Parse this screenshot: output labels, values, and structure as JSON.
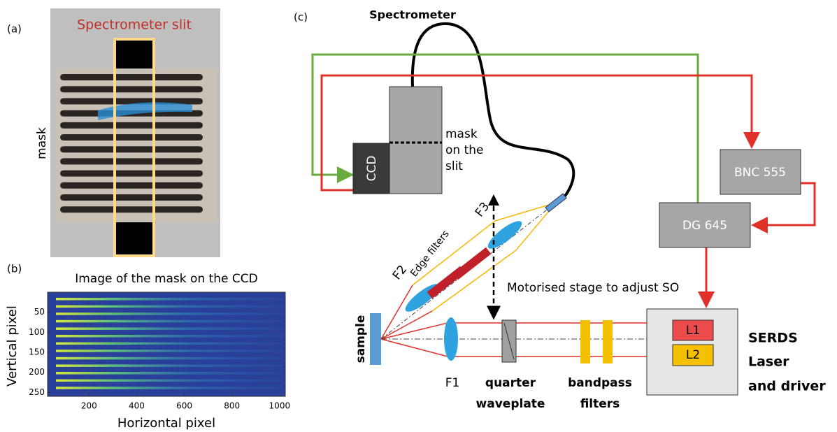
{
  "panel_a": {
    "label": "(a)",
    "title": "Spectrometer slit",
    "side_label": "mask"
  },
  "panel_b": {
    "label": "(b)",
    "title": "Image of the mask on the CCD",
    "x_label": "Horizontal pixel",
    "y_label": "Vertical pixel",
    "xlim": [
      26,
      1024
    ],
    "ylim": [
      0,
      260
    ],
    "xticks": [
      200,
      400,
      600,
      800,
      1000
    ],
    "yticks": [
      50,
      100,
      150,
      200,
      250
    ]
  },
  "panel_c": {
    "label": "(c)",
    "spectrometer": "Spectrometer",
    "ccd": "CCD",
    "mask_note": [
      "mask",
      "on the",
      "slit"
    ],
    "bnc": "BNC 555",
    "dg": "DG 645",
    "l1": "L1",
    "l2": "L2",
    "laser": [
      "SERDS",
      "Laser",
      "and driver"
    ],
    "sample": "sample",
    "f1": "F1",
    "f2": "F2",
    "f3": "F3",
    "edge_filters": "Edge filters",
    "stage": "Motorised stage to adjust SO",
    "waveplate": [
      "quarter",
      "waveplate"
    ],
    "bandpass": [
      "bandpass",
      "filters"
    ]
  }
}
